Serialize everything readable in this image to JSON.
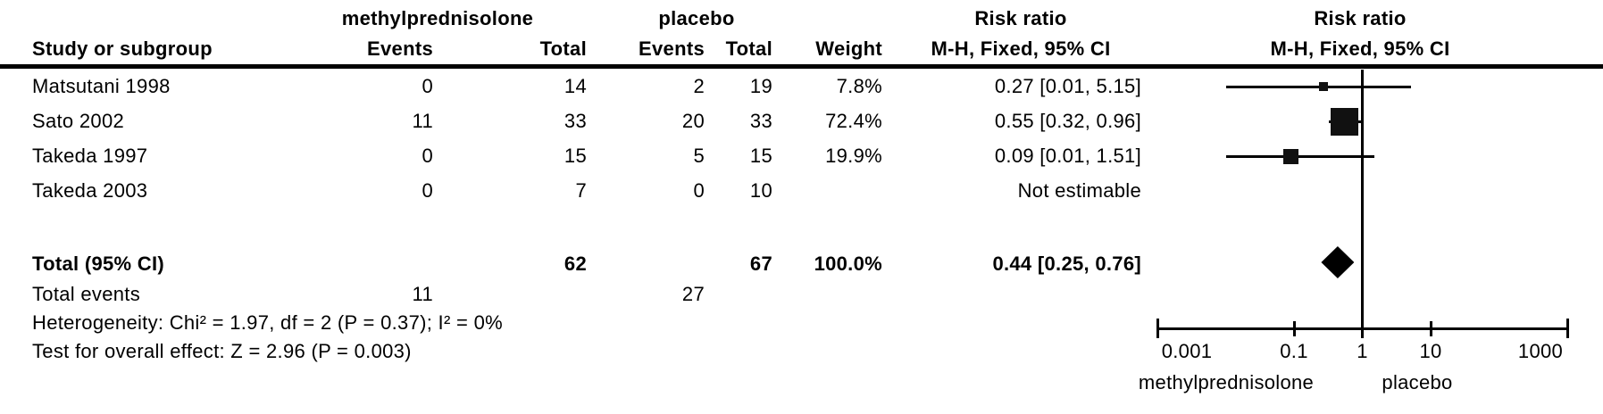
{
  "table": {
    "group1_header": "methylprednisolone",
    "group2_header": "placebo",
    "rr_text_header_line1": "Risk ratio",
    "rr_text_header_line2": "M-H, Fixed, 95% CI",
    "rr_plot_header_line1": "Risk ratio",
    "rr_plot_header_line2": "M-H, Fixed, 95% CI",
    "col_study": "Study or subgroup",
    "col_events1": "Events",
    "col_total1": "Total",
    "col_events2": "Events",
    "col_total2": "Total",
    "col_weight": "Weight",
    "rows": [
      {
        "study": "Matsutani 1998",
        "events1": "0",
        "total1": "14",
        "events2": "2",
        "total2": "19",
        "weight": "7.8%",
        "rr_text": "0.27 [0.01, 5.15]"
      },
      {
        "study": "Sato 2002",
        "events1": "11",
        "total1": "33",
        "events2": "20",
        "total2": "33",
        "weight": "72.4%",
        "rr_text": "0.55 [0.32, 0.96]"
      },
      {
        "study": "Takeda 1997",
        "events1": "0",
        "total1": "15",
        "events2": "5",
        "total2": "15",
        "weight": "19.9%",
        "rr_text": "0.09 [0.01, 1.51]"
      },
      {
        "study": "Takeda 2003",
        "events1": "0",
        "total1": "7",
        "events2": "0",
        "total2": "10",
        "weight": "",
        "rr_text": "Not estimable"
      }
    ],
    "total_row": {
      "label": "Total (95% CI)",
      "total1": "62",
      "total2": "67",
      "weight": "100.0%",
      "rr_text": "0.44 [0.25, 0.76]"
    },
    "total_events": {
      "label": "Total events",
      "events1": "11",
      "events2": "27"
    },
    "heterogeneity": "Heterogeneity: Chi² = 1.97, df = 2 (P = 0.37); I² = 0%",
    "overall_effect": "Test for overall effect: Z = 2.96 (P = 0.003)"
  },
  "chart_data": {
    "type": "forest",
    "effect_measure": "Risk ratio (M-H, Fixed, 95% CI)",
    "x_scale": "log10",
    "x_ticks": [
      "0.001",
      "0.1",
      "1",
      "10",
      "1000"
    ],
    "null_value": 1,
    "axis_label_left": "methylprednisolone",
    "axis_label_right": "placebo",
    "studies": [
      {
        "name": "Matsutani 1998",
        "rr": 0.27,
        "ci_low": 0.01,
        "ci_high": 5.15,
        "weight_pct": 7.8,
        "estimable": true
      },
      {
        "name": "Sato 2002",
        "rr": 0.55,
        "ci_low": 0.32,
        "ci_high": 0.96,
        "weight_pct": 72.4,
        "estimable": true
      },
      {
        "name": "Takeda 1997",
        "rr": 0.09,
        "ci_low": 0.01,
        "ci_high": 1.51,
        "weight_pct": 19.9,
        "estimable": true
      },
      {
        "name": "Takeda 2003",
        "rr": null,
        "ci_low": null,
        "ci_high": null,
        "weight_pct": null,
        "estimable": false
      }
    ],
    "overall": {
      "rr": 0.44,
      "ci_low": 0.25,
      "ci_high": 0.76,
      "weight_pct": 100.0
    }
  }
}
